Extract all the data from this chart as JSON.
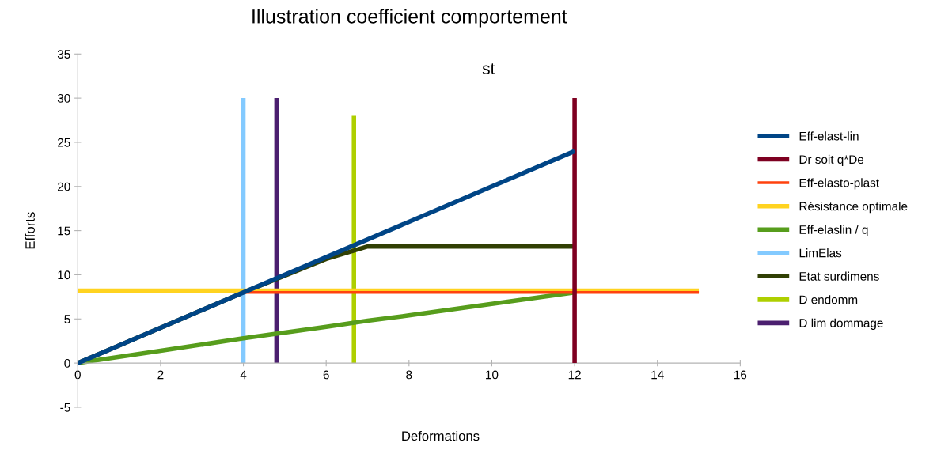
{
  "chart_data": {
    "type": "line",
    "title": "Illustration coefficient comportement",
    "xlabel": "Deformations",
    "ylabel": "Efforts",
    "annotations": [
      "st"
    ],
    "xlim": [
      0,
      16
    ],
    "xticks": [
      0,
      2,
      4,
      6,
      8,
      10,
      12,
      14,
      16
    ],
    "ylim": [
      -5,
      35
    ],
    "yticks": [
      -5,
      0,
      5,
      10,
      15,
      20,
      25,
      30,
      35
    ],
    "grid": false,
    "legend": "right",
    "marker": "none",
    "line_style": "solid",
    "series": [
      {
        "name": "Eff-elast-lin",
        "color": "#004586",
        "x": [
          0,
          12
        ],
        "values": [
          0,
          24
        ]
      },
      {
        "name": "Dr soit q*De",
        "color": "#7e0021",
        "x": [
          12,
          12
        ],
        "values": [
          0,
          30
        ]
      },
      {
        "name": "Eff-elasto-plast",
        "color": "#ff420e",
        "x": [
          0,
          4,
          15
        ],
        "values": [
          0,
          8,
          8
        ]
      },
      {
        "name": "Résistance optimale",
        "color": "#ffd320",
        "x": [
          0,
          15
        ],
        "values": [
          8.2,
          8.2
        ]
      },
      {
        "name": "Eff-elaslin / q",
        "color": "#579d1c",
        "x": [
          0,
          2,
          4,
          6,
          7,
          8,
          10,
          12
        ],
        "values": [
          0,
          1.4,
          2.8,
          4.1,
          4.8,
          5.4,
          6.7,
          8
        ]
      },
      {
        "name": "LimElas",
        "color": "#83caff",
        "x": [
          4,
          4
        ],
        "values": [
          0,
          30
        ]
      },
      {
        "name": "Etat surdimens",
        "color": "#314004",
        "x": [
          0,
          4,
          6,
          7,
          12
        ],
        "values": [
          0,
          8,
          11.8,
          13.2,
          13.2
        ]
      },
      {
        "name": "D endomm",
        "color": "#aecf00",
        "x": [
          6.67,
          6.67
        ],
        "values": [
          0,
          28
        ]
      },
      {
        "name": "D lim dommage",
        "color": "#4b1f6f",
        "x": [
          4.8,
          4.8
        ],
        "values": [
          0,
          30
        ]
      }
    ]
  }
}
